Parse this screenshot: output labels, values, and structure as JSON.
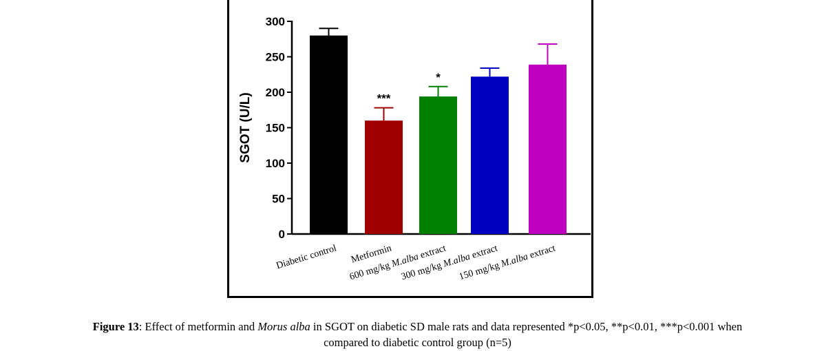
{
  "chart_data": {
    "type": "bar",
    "ylabel": "SGOT (U/L)",
    "ylim": [
      0,
      300
    ],
    "yticks": [
      "0",
      "50",
      "100",
      "150",
      "200",
      "250",
      "300"
    ],
    "categories": [
      "Diabetic control",
      "Metformin",
      "600 mg/kg M.alba extract",
      "300 mg/kg M.alba extract",
      "150 mg/kg M.alba extract"
    ],
    "category_parts": [
      [
        "Diabetic control",
        "",
        ""
      ],
      [
        "Metformin",
        "",
        ""
      ],
      [
        "600 mg/kg ",
        "M.alba",
        " extract"
      ],
      [
        "300 mg/kg ",
        "M.alba",
        " extract"
      ],
      [
        "150 mg/kg ",
        "M.alba",
        " extract"
      ]
    ],
    "values": [
      280,
      160,
      194,
      222,
      239
    ],
    "errors": [
      10,
      18,
      14,
      12,
      29
    ],
    "significance": [
      "",
      "***",
      "*",
      "",
      ""
    ],
    "colors": [
      "#000000",
      "#a00000",
      "#008000",
      "#0000c0",
      "#c000c0"
    ],
    "grid": false
  },
  "caption": {
    "label": "Figure 13",
    "text1": ":  Effect of metformin and ",
    "italic": "Morus alba",
    "text2": " in SGOT on diabetic SD male rats and data represented *p<0.05, **p<0.01, ***p<0.001 when",
    "line2": "compared to diabetic control group (n=5)"
  }
}
